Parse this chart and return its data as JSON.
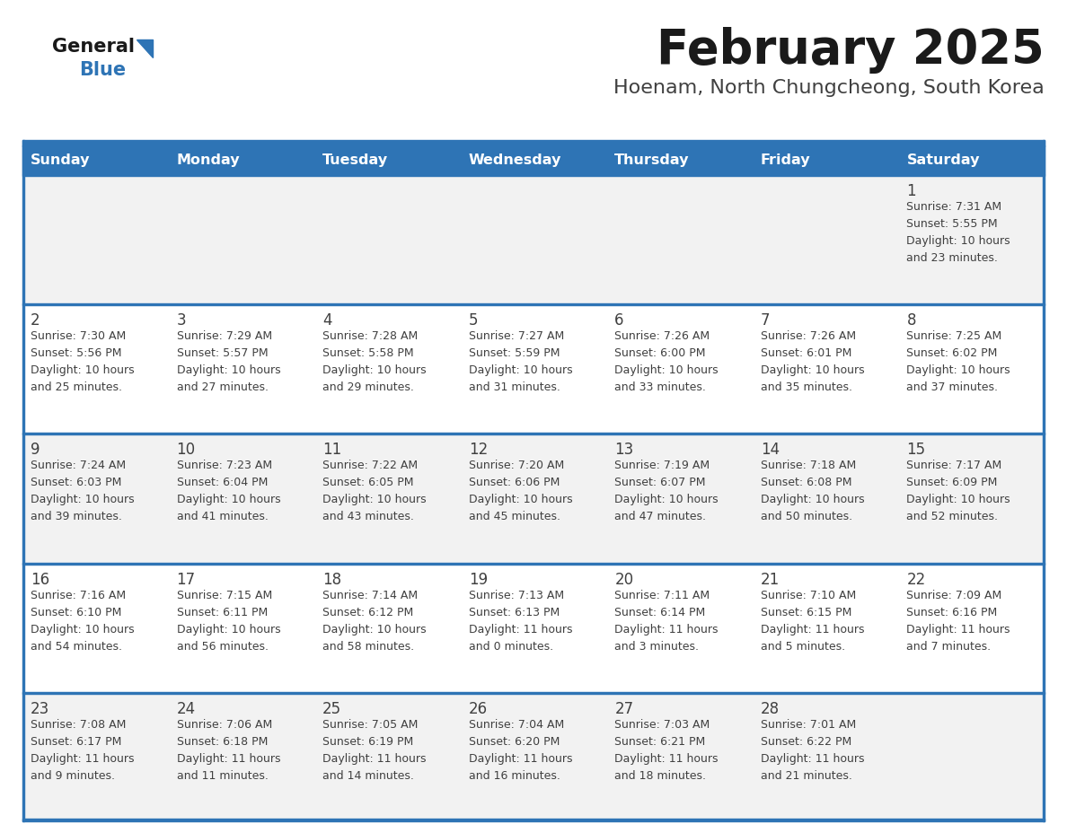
{
  "title": "February 2025",
  "subtitle": "Hoenam, North Chungcheong, South Korea",
  "days_of_week": [
    "Sunday",
    "Monday",
    "Tuesday",
    "Wednesday",
    "Thursday",
    "Friday",
    "Saturday"
  ],
  "header_bg": "#2E74B5",
  "header_text": "#FFFFFF",
  "row_bg": [
    "#F2F2F2",
    "#FFFFFF",
    "#F2F2F2",
    "#FFFFFF",
    "#F2F2F2"
  ],
  "divider_color": "#2E74B5",
  "text_color": "#404040",
  "title_color": "#1A1A1A",
  "subtitle_color": "#404040",
  "calendar_data": [
    [
      null,
      null,
      null,
      null,
      null,
      null,
      {
        "day": "1",
        "sunrise": "7:31 AM",
        "sunset": "5:55 PM",
        "daylight_h": "10 hours",
        "daylight_m": "and 23 minutes."
      }
    ],
    [
      {
        "day": "2",
        "sunrise": "7:30 AM",
        "sunset": "5:56 PM",
        "daylight_h": "10 hours",
        "daylight_m": "and 25 minutes."
      },
      {
        "day": "3",
        "sunrise": "7:29 AM",
        "sunset": "5:57 PM",
        "daylight_h": "10 hours",
        "daylight_m": "and 27 minutes."
      },
      {
        "day": "4",
        "sunrise": "7:28 AM",
        "sunset": "5:58 PM",
        "daylight_h": "10 hours",
        "daylight_m": "and 29 minutes."
      },
      {
        "day": "5",
        "sunrise": "7:27 AM",
        "sunset": "5:59 PM",
        "daylight_h": "10 hours",
        "daylight_m": "and 31 minutes."
      },
      {
        "day": "6",
        "sunrise": "7:26 AM",
        "sunset": "6:00 PM",
        "daylight_h": "10 hours",
        "daylight_m": "and 33 minutes."
      },
      {
        "day": "7",
        "sunrise": "7:26 AM",
        "sunset": "6:01 PM",
        "daylight_h": "10 hours",
        "daylight_m": "and 35 minutes."
      },
      {
        "day": "8",
        "sunrise": "7:25 AM",
        "sunset": "6:02 PM",
        "daylight_h": "10 hours",
        "daylight_m": "and 37 minutes."
      }
    ],
    [
      {
        "day": "9",
        "sunrise": "7:24 AM",
        "sunset": "6:03 PM",
        "daylight_h": "10 hours",
        "daylight_m": "and 39 minutes."
      },
      {
        "day": "10",
        "sunrise": "7:23 AM",
        "sunset": "6:04 PM",
        "daylight_h": "10 hours",
        "daylight_m": "and 41 minutes."
      },
      {
        "day": "11",
        "sunrise": "7:22 AM",
        "sunset": "6:05 PM",
        "daylight_h": "10 hours",
        "daylight_m": "and 43 minutes."
      },
      {
        "day": "12",
        "sunrise": "7:20 AM",
        "sunset": "6:06 PM",
        "daylight_h": "10 hours",
        "daylight_m": "and 45 minutes."
      },
      {
        "day": "13",
        "sunrise": "7:19 AM",
        "sunset": "6:07 PM",
        "daylight_h": "10 hours",
        "daylight_m": "and 47 minutes."
      },
      {
        "day": "14",
        "sunrise": "7:18 AM",
        "sunset": "6:08 PM",
        "daylight_h": "10 hours",
        "daylight_m": "and 50 minutes."
      },
      {
        "day": "15",
        "sunrise": "7:17 AM",
        "sunset": "6:09 PM",
        "daylight_h": "10 hours",
        "daylight_m": "and 52 minutes."
      }
    ],
    [
      {
        "day": "16",
        "sunrise": "7:16 AM",
        "sunset": "6:10 PM",
        "daylight_h": "10 hours",
        "daylight_m": "and 54 minutes."
      },
      {
        "day": "17",
        "sunrise": "7:15 AM",
        "sunset": "6:11 PM",
        "daylight_h": "10 hours",
        "daylight_m": "and 56 minutes."
      },
      {
        "day": "18",
        "sunrise": "7:14 AM",
        "sunset": "6:12 PM",
        "daylight_h": "10 hours",
        "daylight_m": "and 58 minutes."
      },
      {
        "day": "19",
        "sunrise": "7:13 AM",
        "sunset": "6:13 PM",
        "daylight_h": "11 hours",
        "daylight_m": "and 0 minutes."
      },
      {
        "day": "20",
        "sunrise": "7:11 AM",
        "sunset": "6:14 PM",
        "daylight_h": "11 hours",
        "daylight_m": "and 3 minutes."
      },
      {
        "day": "21",
        "sunrise": "7:10 AM",
        "sunset": "6:15 PM",
        "daylight_h": "11 hours",
        "daylight_m": "and 5 minutes."
      },
      {
        "day": "22",
        "sunrise": "7:09 AM",
        "sunset": "6:16 PM",
        "daylight_h": "11 hours",
        "daylight_m": "and 7 minutes."
      }
    ],
    [
      {
        "day": "23",
        "sunrise": "7:08 AM",
        "sunset": "6:17 PM",
        "daylight_h": "11 hours",
        "daylight_m": "and 9 minutes."
      },
      {
        "day": "24",
        "sunrise": "7:06 AM",
        "sunset": "6:18 PM",
        "daylight_h": "11 hours",
        "daylight_m": "and 11 minutes."
      },
      {
        "day": "25",
        "sunrise": "7:05 AM",
        "sunset": "6:19 PM",
        "daylight_h": "11 hours",
        "daylight_m": "and 14 minutes."
      },
      {
        "day": "26",
        "sunrise": "7:04 AM",
        "sunset": "6:20 PM",
        "daylight_h": "11 hours",
        "daylight_m": "and 16 minutes."
      },
      {
        "day": "27",
        "sunrise": "7:03 AM",
        "sunset": "6:21 PM",
        "daylight_h": "11 hours",
        "daylight_m": "and 18 minutes."
      },
      {
        "day": "28",
        "sunrise": "7:01 AM",
        "sunset": "6:22 PM",
        "daylight_h": "11 hours",
        "daylight_m": "and 21 minutes."
      },
      null
    ]
  ]
}
